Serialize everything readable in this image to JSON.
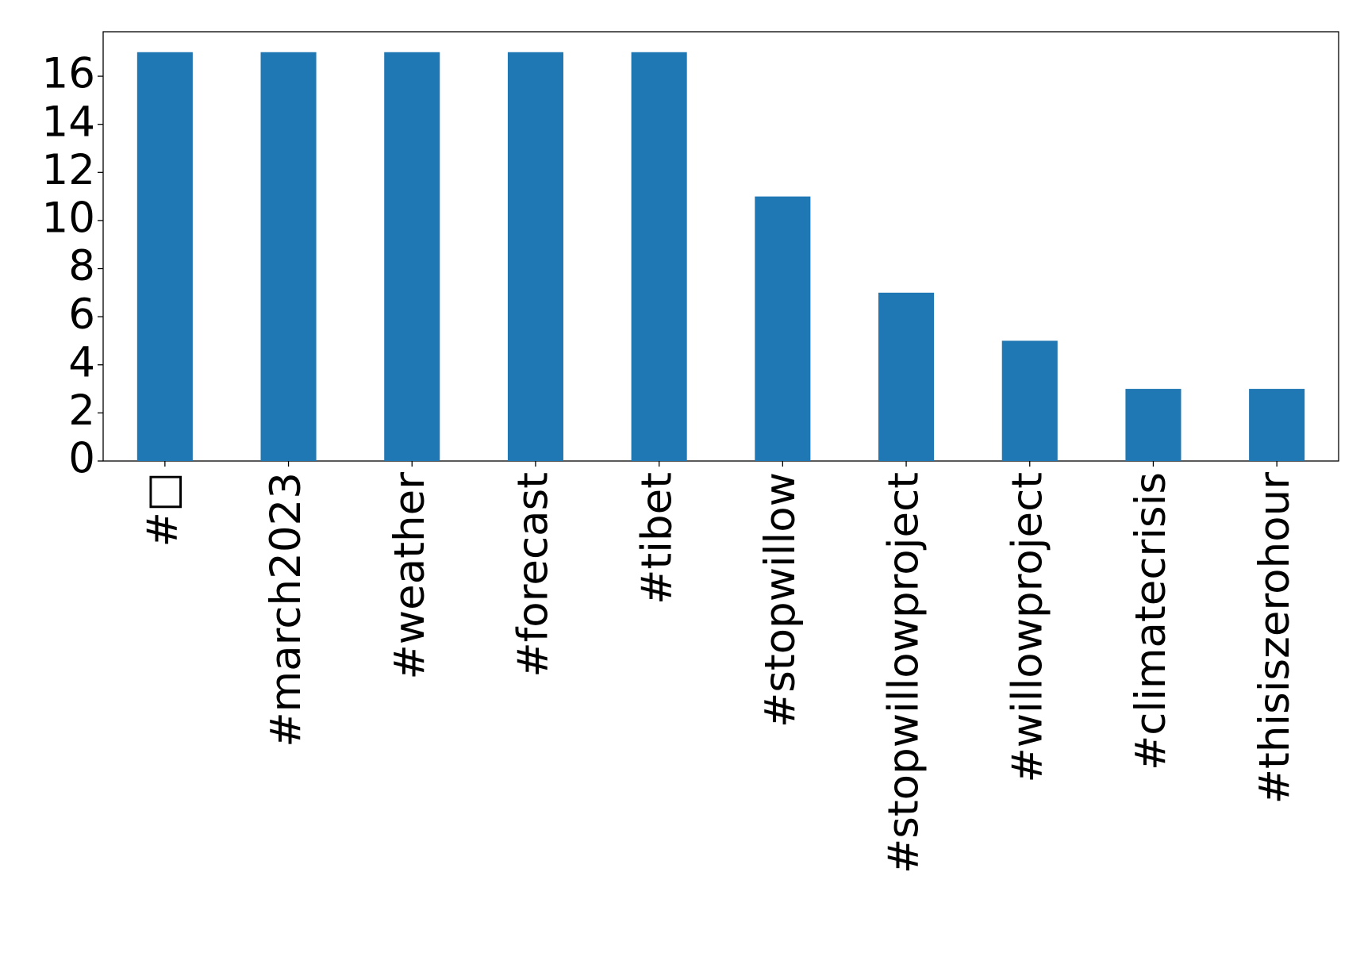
{
  "chart_data": {
    "type": "bar",
    "categories": [
      "#□",
      "#march2023",
      "#weather",
      "#forecast",
      "#tibet",
      "#stopwillow",
      "#stopwillowproject",
      "#willowproject",
      "#climatecrisis",
      "#thisiszerohour"
    ],
    "values": [
      17,
      17,
      17,
      17,
      17,
      11,
      7,
      5,
      3,
      3
    ],
    "color": "#1f77b4",
    "ylim": [
      0,
      17.85
    ],
    "yticks": [
      0,
      2,
      4,
      6,
      8,
      10,
      12,
      14,
      16
    ],
    "grid": false
  }
}
